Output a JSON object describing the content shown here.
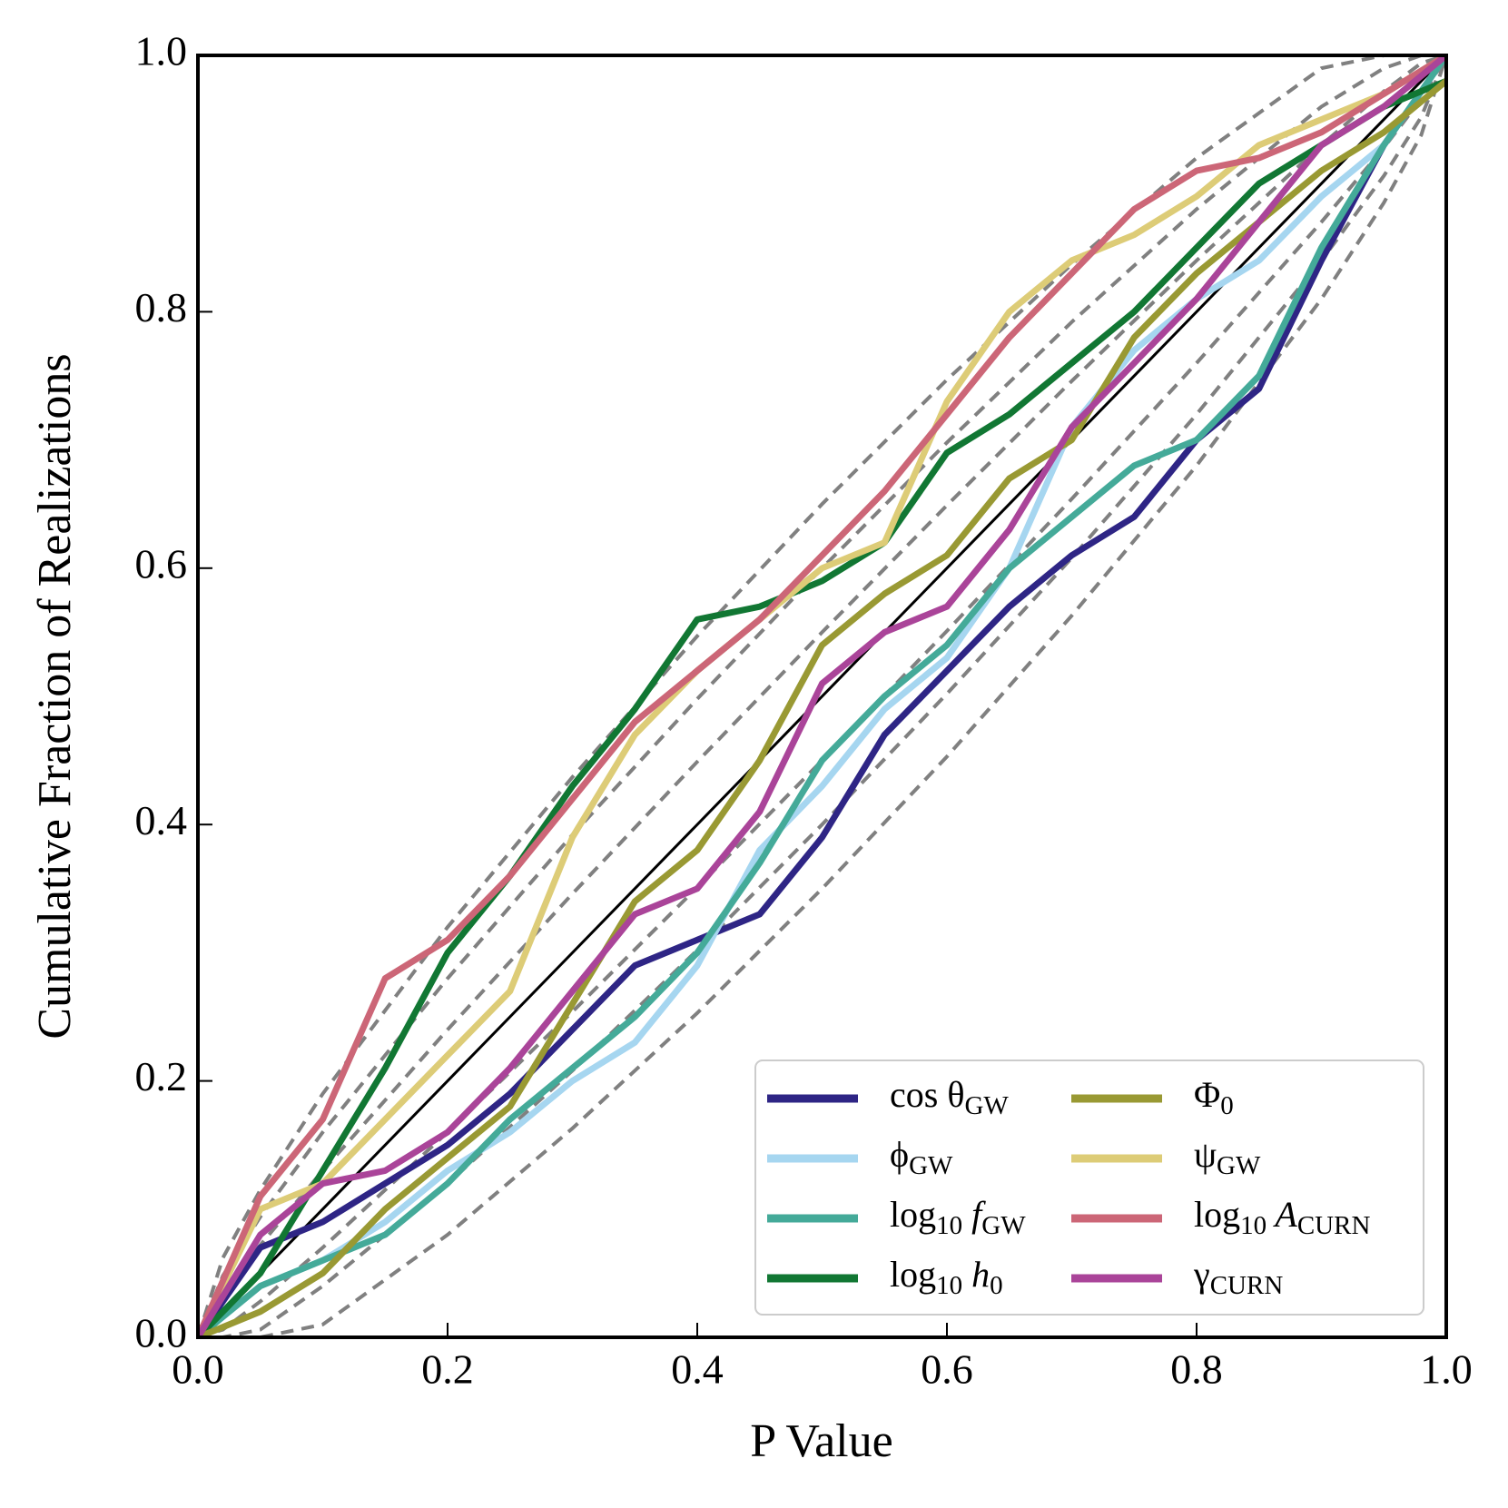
{
  "chart_data": {
    "type": "line",
    "xlabel": "P Value",
    "ylabel": "Cumulative Fraction of Realizations",
    "xlim": [
      0,
      1
    ],
    "ylim": [
      0,
      1
    ],
    "xticks": [
      {
        "value": 0,
        "label": "0.0"
      },
      0.2,
      0.4,
      0.6,
      0.8,
      {
        "value": 1,
        "label": "1.0"
      }
    ],
    "yticks": [
      {
        "value": 0,
        "label": "0.0"
      },
      0.2,
      0.4,
      0.6,
      0.8,
      {
        "value": 1,
        "label": "1.0"
      }
    ],
    "diagonal_color": "#000000",
    "bands": {
      "color": "#808080",
      "x": [
        0,
        0.02,
        0.05,
        0.1,
        0.2,
        0.3,
        0.4,
        0.5,
        0.6,
        0.7,
        0.8,
        0.9,
        0.95,
        0.98,
        1
      ],
      "levels": [
        {
          "lower": [
            0,
            0.006,
            0.028,
            0.07,
            0.16,
            0.254,
            0.351,
            0.45,
            0.551,
            0.654,
            0.76,
            0.87,
            0.928,
            0.966,
            1
          ],
          "upper": [
            0,
            0.034,
            0.072,
            0.13,
            0.24,
            0.346,
            0.449,
            0.55,
            0.649,
            0.746,
            0.84,
            0.93,
            0.972,
            0.994,
            1
          ]
        },
        {
          "lower": [
            0,
            0,
            0.006,
            0.04,
            0.12,
            0.208,
            0.302,
            0.4,
            0.502,
            0.608,
            0.72,
            0.84,
            0.906,
            0.952,
            1
          ],
          "upper": [
            0,
            0.048,
            0.094,
            0.16,
            0.28,
            0.392,
            0.498,
            0.6,
            0.698,
            0.792,
            0.88,
            0.96,
            0.99,
            1,
            1
          ]
        },
        {
          "lower": [
            0,
            0,
            0,
            0.01,
            0.08,
            0.163,
            0.253,
            0.35,
            0.453,
            0.563,
            0.68,
            0.81,
            0.885,
            0.938,
            1
          ],
          "upper": [
            0,
            0.062,
            0.115,
            0.19,
            0.32,
            0.437,
            0.547,
            0.65,
            0.747,
            0.837,
            0.92,
            0.99,
            1,
            1,
            1
          ]
        }
      ]
    },
    "x": [
      0,
      0.05,
      0.1,
      0.15,
      0.2,
      0.25,
      0.3,
      0.35,
      0.4,
      0.45,
      0.5,
      0.55,
      0.6,
      0.65,
      0.7,
      0.75,
      0.8,
      0.85,
      0.9,
      0.95,
      1
    ],
    "series": [
      {
        "name": [
          "cos θ",
          "GW"
        ],
        "color": "#2e2585",
        "values": [
          0,
          0.07,
          0.09,
          0.12,
          0.15,
          0.19,
          0.24,
          0.29,
          0.31,
          0.33,
          0.39,
          0.47,
          0.52,
          0.57,
          0.61,
          0.64,
          0.7,
          0.74,
          0.84,
          0.93,
          1
        ]
      },
      {
        "name": [
          "ϕ",
          "GW"
        ],
        "color": "#a6d6f0",
        "values": [
          0,
          0.04,
          0.06,
          0.09,
          0.13,
          0.16,
          0.2,
          0.23,
          0.29,
          0.38,
          0.43,
          0.49,
          0.53,
          0.6,
          0.71,
          0.77,
          0.81,
          0.84,
          0.89,
          0.93,
          1
        ]
      },
      {
        "name": [
          "log",
          "10",
          " f",
          "GW"
        ],
        "color": "#44aa99",
        "values": [
          0,
          0.04,
          0.06,
          0.08,
          0.12,
          0.17,
          0.21,
          0.25,
          0.3,
          0.37,
          0.45,
          0.5,
          0.54,
          0.6,
          0.64,
          0.68,
          0.7,
          0.75,
          0.85,
          0.93,
          1
        ]
      },
      {
        "name": [
          "log",
          "10",
          " h",
          "0"
        ],
        "color": "#117733",
        "values": [
          0,
          0.05,
          0.13,
          0.21,
          0.3,
          0.36,
          0.43,
          0.49,
          0.56,
          0.57,
          0.59,
          0.62,
          0.69,
          0.72,
          0.76,
          0.8,
          0.85,
          0.9,
          0.93,
          0.96,
          0.98
        ]
      },
      {
        "name": [
          "Φ",
          "0"
        ],
        "color": "#999933",
        "values": [
          0,
          0.02,
          0.05,
          0.1,
          0.14,
          0.18,
          0.26,
          0.34,
          0.38,
          0.45,
          0.54,
          0.58,
          0.61,
          0.67,
          0.7,
          0.78,
          0.83,
          0.87,
          0.91,
          0.94,
          0.98
        ]
      },
      {
        "name": [
          "ψ",
          "GW"
        ],
        "color": "#ddcc77",
        "values": [
          0,
          0.1,
          0.12,
          0.17,
          0.22,
          0.27,
          0.39,
          0.47,
          0.52,
          0.56,
          0.6,
          0.62,
          0.73,
          0.8,
          0.84,
          0.86,
          0.89,
          0.93,
          0.95,
          0.97,
          1
        ]
      },
      {
        "name": [
          "log",
          "10",
          " A",
          "CURN"
        ],
        "color": "#cc6677",
        "values": [
          0,
          0.11,
          0.17,
          0.28,
          0.31,
          0.36,
          0.42,
          0.48,
          0.52,
          0.56,
          0.61,
          0.66,
          0.72,
          0.78,
          0.83,
          0.88,
          0.91,
          0.92,
          0.94,
          0.97,
          1
        ]
      },
      {
        "name": [
          "γ",
          "CURN"
        ],
        "color": "#aa4499",
        "values": [
          0,
          0.08,
          0.12,
          0.13,
          0.16,
          0.21,
          0.27,
          0.33,
          0.35,
          0.41,
          0.51,
          0.55,
          0.57,
          0.63,
          0.71,
          0.76,
          0.81,
          0.87,
          0.93,
          0.96,
          1
        ]
      }
    ]
  }
}
